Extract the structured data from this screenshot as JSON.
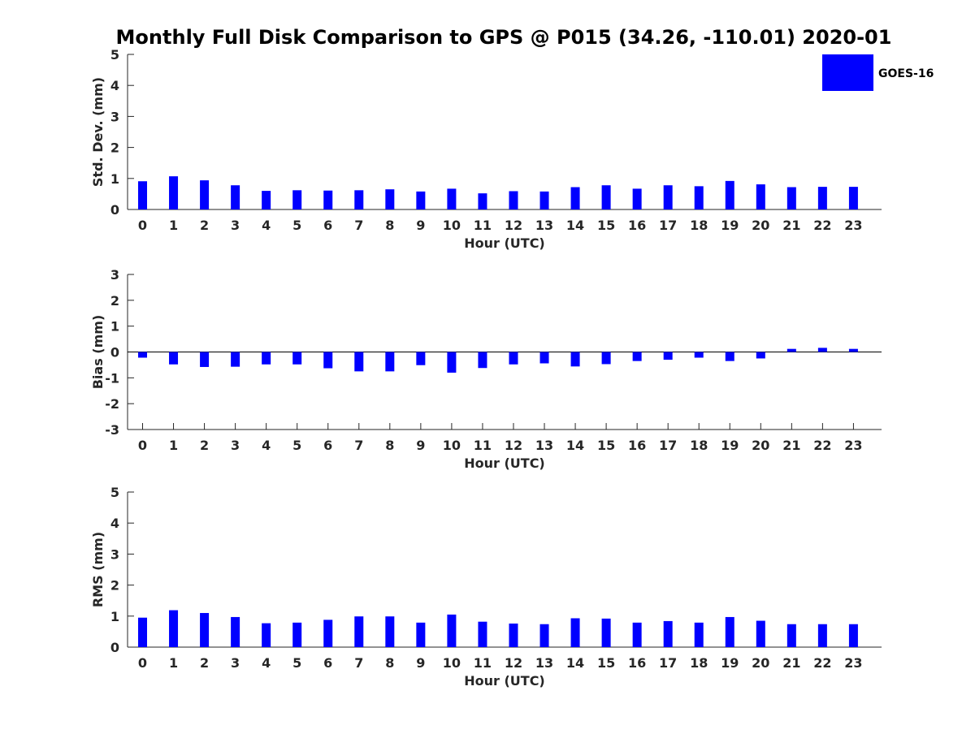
{
  "figure": {
    "title": "Monthly Full Disk Comparison to GPS @ P015 (34.26, -110.01) 2020-01"
  },
  "legend": {
    "label": "GOES-16",
    "color": "#0000ff",
    "placement": "top-right"
  },
  "chart_data": [
    {
      "type": "bar",
      "categories": [
        "0",
        "1",
        "2",
        "3",
        "4",
        "5",
        "6",
        "7",
        "8",
        "9",
        "10",
        "11",
        "12",
        "13",
        "14",
        "15",
        "16",
        "17",
        "18",
        "19",
        "20",
        "21",
        "22",
        "23"
      ],
      "series": [
        {
          "name": "GOES-16",
          "color": "#0000ff",
          "values": [
            0.91,
            1.07,
            0.94,
            0.78,
            0.6,
            0.62,
            0.61,
            0.62,
            0.65,
            0.58,
            0.67,
            0.52,
            0.59,
            0.58,
            0.72,
            0.78,
            0.67,
            0.78,
            0.75,
            0.92,
            0.81,
            0.72,
            0.73,
            0.73
          ]
        }
      ],
      "xlabel": "Hour (UTC)",
      "ylabel": "Std. Dev. (mm)",
      "ylim": [
        0,
        5
      ],
      "yticks": [
        "0",
        "1",
        "2",
        "3",
        "4",
        "5"
      ],
      "grid": false
    },
    {
      "type": "bar",
      "categories": [
        "0",
        "1",
        "2",
        "3",
        "4",
        "5",
        "6",
        "7",
        "8",
        "9",
        "10",
        "11",
        "12",
        "13",
        "14",
        "15",
        "16",
        "17",
        "18",
        "19",
        "20",
        "21",
        "22",
        "23"
      ],
      "series": [
        {
          "name": "GOES-16",
          "color": "#0000ff",
          "values": [
            -0.22,
            -0.48,
            -0.58,
            -0.57,
            -0.48,
            -0.48,
            -0.63,
            -0.75,
            -0.75,
            -0.51,
            -0.8,
            -0.62,
            -0.48,
            -0.44,
            -0.56,
            -0.47,
            -0.35,
            -0.3,
            -0.22,
            -0.35,
            -0.25,
            0.12,
            0.16,
            0.12
          ]
        }
      ],
      "xlabel": "Hour (UTC)",
      "ylabel": "Bias (mm)",
      "ylim": [
        -3,
        3
      ],
      "yticks": [
        "-3",
        "-2",
        "-1",
        "0",
        "1",
        "2",
        "3"
      ],
      "zero_line": true,
      "grid": false
    },
    {
      "type": "bar",
      "categories": [
        "0",
        "1",
        "2",
        "3",
        "4",
        "5",
        "6",
        "7",
        "8",
        "9",
        "10",
        "11",
        "12",
        "13",
        "14",
        "15",
        "16",
        "17",
        "18",
        "19",
        "20",
        "21",
        "22",
        "23"
      ],
      "series": [
        {
          "name": "GOES-16",
          "color": "#0000ff",
          "values": [
            0.95,
            1.19,
            1.1,
            0.97,
            0.77,
            0.79,
            0.88,
            0.99,
            0.99,
            0.79,
            1.05,
            0.82,
            0.76,
            0.74,
            0.93,
            0.92,
            0.79,
            0.84,
            0.79,
            0.97,
            0.85,
            0.74,
            0.74,
            0.74
          ]
        }
      ],
      "xlabel": "Hour (UTC)",
      "ylabel": "RMS (mm)",
      "ylim": [
        0,
        5
      ],
      "yticks": [
        "0",
        "1",
        "2",
        "3",
        "4",
        "5"
      ],
      "grid": false
    }
  ]
}
